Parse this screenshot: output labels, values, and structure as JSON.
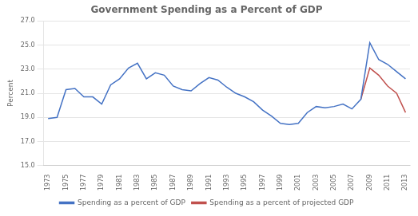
{
  "chart_data": {
    "type": "line",
    "title": "Government Spending as a Percent of GDP",
    "ylabel": "Percent",
    "series": [
      {
        "name": "Spending as a percent of GDP",
        "color": "#4472C4",
        "x": [
          1973,
          1974,
          1975,
          1976,
          1977,
          1978,
          1979,
          1980,
          1981,
          1982,
          1983,
          1984,
          1985,
          1986,
          1987,
          1988,
          1989,
          1990,
          1991,
          1992,
          1993,
          1994,
          1995,
          1996,
          1997,
          1998,
          1999,
          2000,
          2001,
          2002,
          2003,
          2004,
          2005,
          2006,
          2007,
          2008,
          2009,
          2010,
          2011,
          2012,
          2013
        ],
        "values": [
          18.9,
          19.0,
          21.3,
          21.4,
          20.7,
          20.7,
          20.1,
          21.7,
          22.2,
          23.1,
          23.5,
          22.2,
          22.7,
          22.5,
          21.6,
          21.3,
          21.2,
          21.8,
          22.3,
          22.1,
          21.5,
          21.0,
          20.7,
          20.3,
          19.6,
          19.1,
          18.5,
          18.4,
          18.5,
          19.4,
          19.9,
          19.8,
          19.9,
          20.1,
          19.7,
          20.5,
          25.2,
          23.8,
          23.4,
          22.8,
          22.2
        ]
      },
      {
        "name": "Spending as a percent of projected GDP",
        "color": "#C0504D",
        "x": [
          2008,
          2009,
          2010,
          2011,
          2012,
          2013
        ],
        "values": [
          20.5,
          23.1,
          22.5,
          21.6,
          21.0,
          19.4
        ]
      }
    ],
    "xlim": [
      1972.5,
      2013.5
    ],
    "xticks": [
      1973,
      1975,
      1977,
      1979,
      1981,
      1983,
      1985,
      1987,
      1989,
      1991,
      1993,
      1995,
      1997,
      1999,
      2001,
      2003,
      2005,
      2007,
      2009,
      2011,
      2013
    ],
    "ylim": [
      15.0,
      27.0
    ],
    "yticks": [
      {
        "value": 15,
        "label": "15.0"
      },
      {
        "value": 17,
        "label": "17.0"
      },
      {
        "value": 19,
        "label": "19.0"
      },
      {
        "value": 21,
        "label": "21.0"
      },
      {
        "value": 23,
        "label": "23.0"
      },
      {
        "value": 25,
        "label": "25.0"
      },
      {
        "value": 27,
        "label": "27.0"
      }
    ],
    "grid": "y",
    "legend": "bottom"
  }
}
